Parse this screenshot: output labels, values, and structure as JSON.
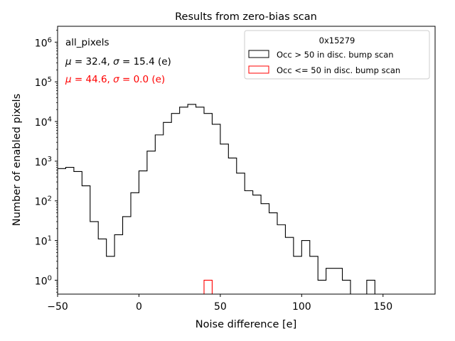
{
  "chart_data": {
    "type": "histogram",
    "title": "Results from zero-bias scan",
    "xlabel": "Noise difference [e]",
    "ylabel": "Number of enabled pixels",
    "xlim": [
      -50,
      182
    ],
    "ylim_log10": [
      -0.35,
      6.4
    ],
    "yscale": "log",
    "x_ticks": [
      {
        "value": -50,
        "label": "−50"
      },
      {
        "value": 0,
        "label": "0"
      },
      {
        "value": 50,
        "label": "50"
      },
      {
        "value": 100,
        "label": "100"
      },
      {
        "value": 150,
        "label": "150"
      }
    ],
    "y_ticks": [
      {
        "exp": 0,
        "base": "10",
        "sup": "0"
      },
      {
        "exp": 1,
        "base": "10",
        "sup": "1"
      },
      {
        "exp": 2,
        "base": "10",
        "sup": "2"
      },
      {
        "exp": 3,
        "base": "10",
        "sup": "3"
      },
      {
        "exp": 4,
        "base": "10",
        "sup": "4"
      },
      {
        "exp": 5,
        "base": "10",
        "sup": "5"
      },
      {
        "exp": 6,
        "base": "10",
        "sup": "6"
      }
    ],
    "bin_edges": [
      -50,
      -45,
      -40,
      -35,
      -30,
      -25,
      -20,
      -15,
      -10,
      -5,
      0,
      5,
      10,
      15,
      20,
      25,
      30,
      35,
      40,
      45,
      50,
      55,
      60,
      65,
      70,
      75,
      80,
      85,
      90,
      95,
      100,
      105,
      110,
      115,
      120,
      125,
      130,
      135,
      140,
      145,
      150
    ],
    "series": [
      {
        "name": "Occ > 50 in disc. bump scan",
        "color": "#000000",
        "values": [
          650,
          700,
          550,
          240,
          30,
          11,
          4,
          14,
          40,
          160,
          570,
          1800,
          4600,
          9500,
          16000,
          23000,
          27000,
          23000,
          16000,
          8500,
          2700,
          1200,
          500,
          180,
          140,
          85,
          50,
          25,
          12,
          4,
          10,
          4,
          1,
          2,
          2,
          1,
          0,
          0,
          1,
          0
        ]
      },
      {
        "name": "Occ <= 50 in disc. bump scan",
        "color": "#ff0000",
        "values": [
          0,
          0,
          0,
          0,
          0,
          0,
          0,
          0,
          0,
          0,
          0,
          0,
          0,
          0,
          0,
          0,
          0,
          0,
          1,
          0,
          0,
          0,
          0,
          0,
          0,
          0,
          0,
          0,
          0,
          0,
          0,
          0,
          0,
          0,
          0,
          0,
          0,
          0,
          0,
          0
        ]
      }
    ],
    "legend": {
      "title": "0x15279",
      "placement": "top-right",
      "entries": [
        "Occ > 50 in disc. bump scan",
        "Occ <= 50 in disc. bump scan"
      ]
    },
    "annotations": [
      {
        "name": "pixel-group-label",
        "parts": [
          {
            "t": "all_pixels",
            "i": false
          }
        ],
        "color": "#000000"
      },
      {
        "name": "stats-black",
        "parts": [
          {
            "t": "μ",
            "i": true
          },
          {
            "t": " = 32.4, ",
            "i": false
          },
          {
            "t": "σ",
            "i": true
          },
          {
            "t": " = 15.4 (e)",
            "i": false
          }
        ],
        "color": "#000000"
      },
      {
        "name": "stats-red",
        "parts": [
          {
            "t": "μ",
            "i": true
          },
          {
            "t": " = 44.6, ",
            "i": false
          },
          {
            "t": "σ",
            "i": true
          },
          {
            "t": " = 0.0 (e)",
            "i": false
          }
        ],
        "color": "#ff0000"
      }
    ]
  }
}
